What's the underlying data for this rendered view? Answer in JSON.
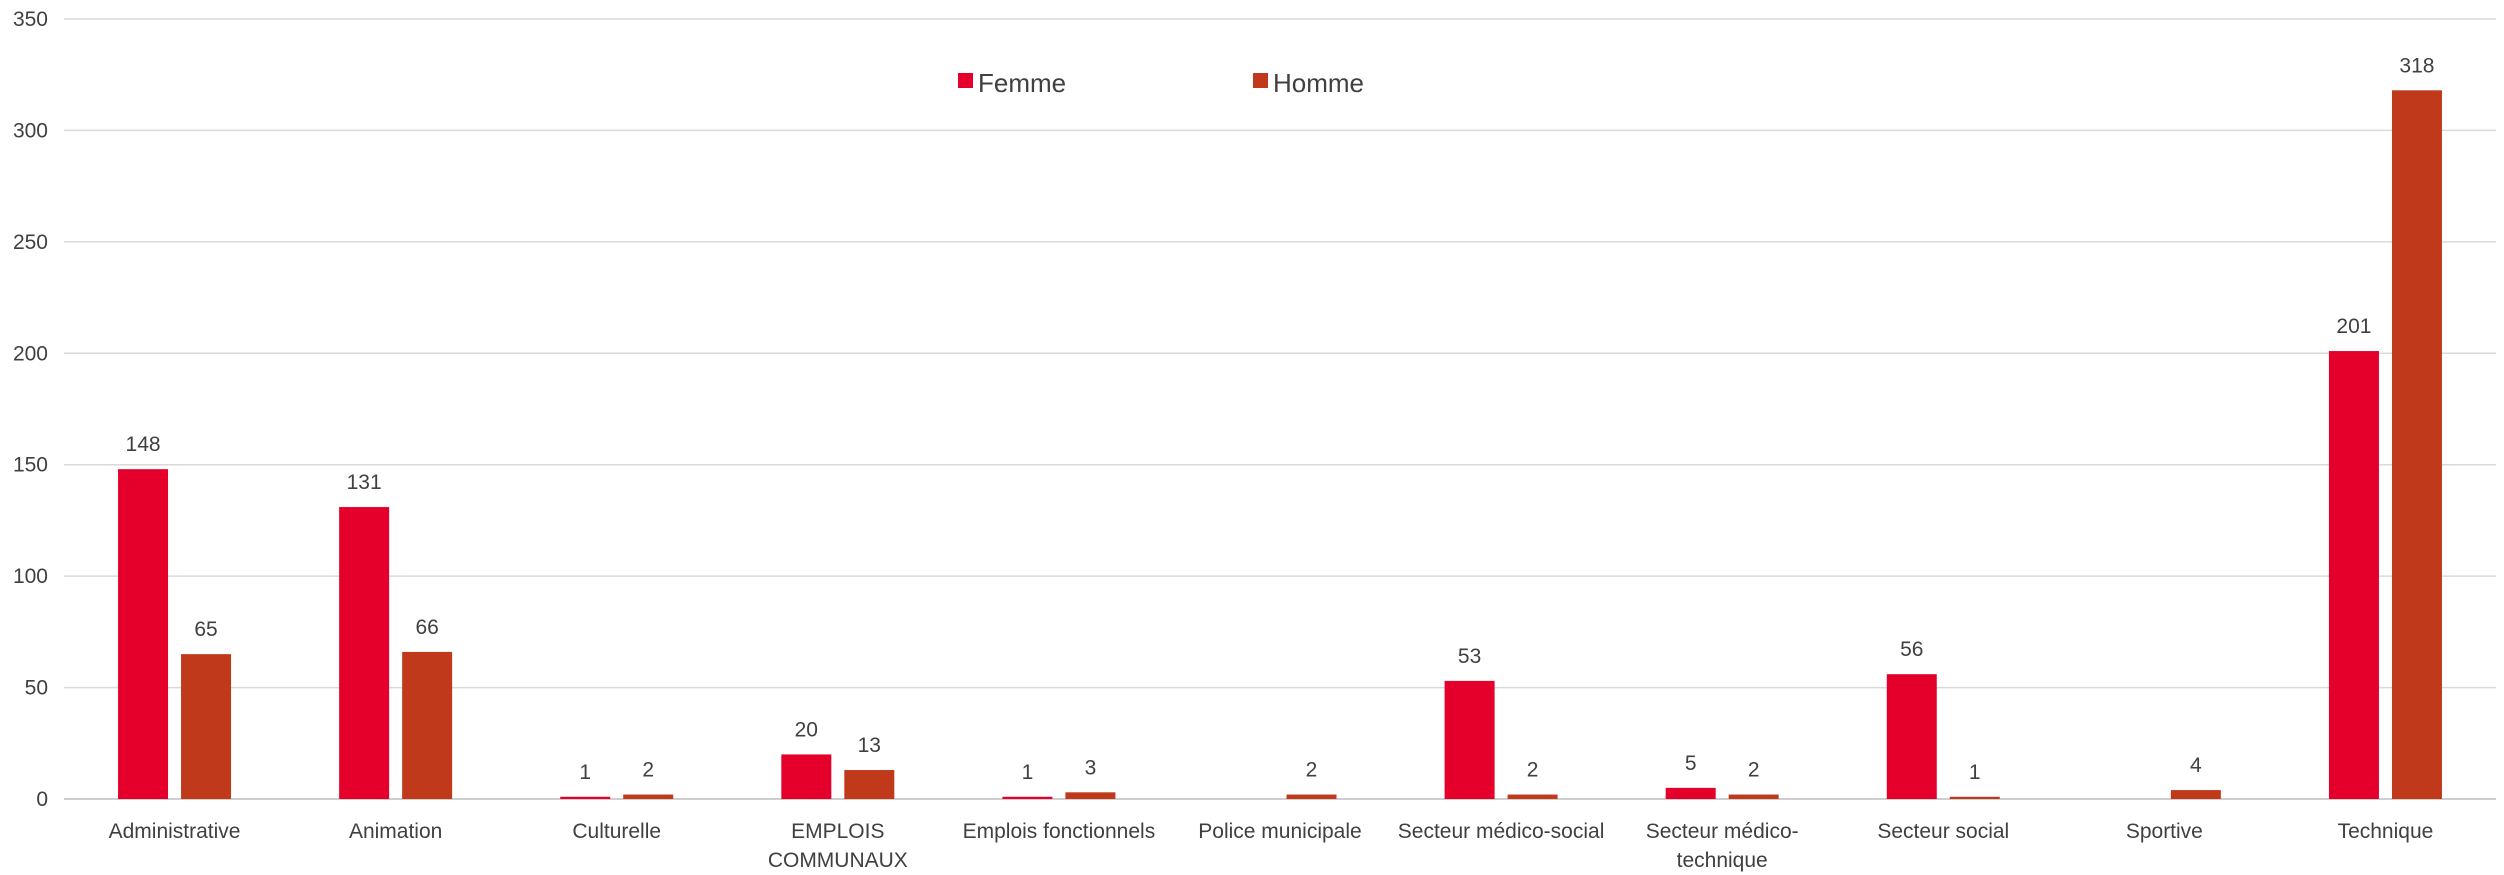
{
  "chart_data": {
    "type": "bar",
    "title": "",
    "xlabel": "",
    "ylabel": "",
    "ylim": [
      0,
      350
    ],
    "yticks": [
      0,
      50,
      100,
      150,
      200,
      250,
      300,
      350
    ],
    "grid": true,
    "legend_position": "top-center",
    "categories": [
      [
        "Administrative"
      ],
      [
        "Animation"
      ],
      [
        "Culturelle"
      ],
      [
        "EMPLOIS",
        "COMMUNAUX"
      ],
      [
        "Emplois fonctionnels"
      ],
      [
        "Police municipale"
      ],
      [
        "Secteur médico-social"
      ],
      [
        "Secteur médico-",
        "technique"
      ],
      [
        "Secteur social"
      ],
      [
        "Sportive"
      ],
      [
        "Technique"
      ]
    ],
    "series": [
      {
        "name": "Femme",
        "color": "#e4002b",
        "values": [
          148,
          131,
          1,
          20,
          1,
          0,
          53,
          5,
          56,
          0,
          201
        ],
        "labels": [
          "148",
          "131",
          "1",
          "20",
          "1",
          "",
          "53",
          "5",
          "56",
          "",
          "201"
        ]
      },
      {
        "name": "Homme",
        "color": "#c0391b",
        "values": [
          65,
          66,
          2,
          13,
          3,
          2,
          2,
          2,
          1,
          4,
          318
        ],
        "labels": [
          "65",
          "66",
          "2",
          "13",
          "3",
          "2",
          "2",
          "2",
          "1",
          "4",
          "318"
        ]
      }
    ]
  }
}
